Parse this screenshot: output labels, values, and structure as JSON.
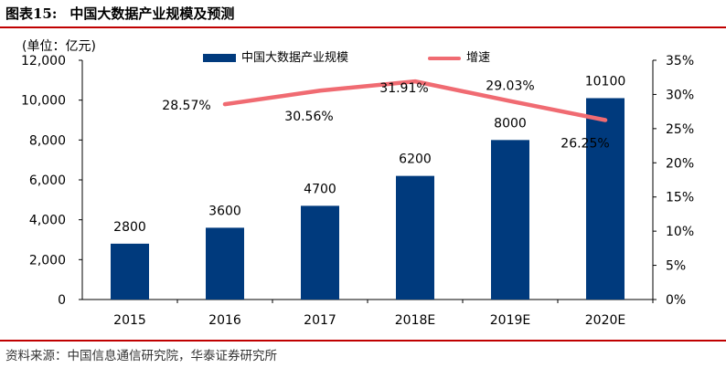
{
  "figure": {
    "title_num": "图表15:",
    "title_text": "中国大数据产业规模及预测",
    "unit_label": "(单位：亿元)",
    "source": "资料来源：中国信息通信研究院，华泰证券研究所"
  },
  "colors": {
    "bar": "#003a7d",
    "line": "#f06b72",
    "rule": "#c00000"
  },
  "chart_data": {
    "type": "bar+line",
    "categories": [
      "2015",
      "2016",
      "2017",
      "2018E",
      "2019E",
      "2020E"
    ],
    "series": [
      {
        "name": "中国大数据产业规模",
        "type": "bar",
        "axis": "left",
        "values": [
          2800,
          3600,
          4700,
          6200,
          8000,
          10100
        ],
        "labels": [
          "2800",
          "3600",
          "4700",
          "6200",
          "8000",
          "10100"
        ]
      },
      {
        "name": "增速",
        "type": "line",
        "axis": "right",
        "values": [
          null,
          28.57,
          30.56,
          31.91,
          29.03,
          26.25
        ],
        "labels": [
          "",
          "28.57%",
          "30.56%",
          "31.91%",
          "29.03%",
          "26.25%"
        ]
      }
    ],
    "y_left": {
      "min": 0,
      "max": 12000,
      "step": 2000,
      "ticks": [
        "0",
        "2,000",
        "4,000",
        "6,000",
        "8,000",
        "10,000",
        "12,000"
      ]
    },
    "y_right": {
      "min": 0,
      "max": 35,
      "step": 5,
      "ticks": [
        "0%",
        "5%",
        "10%",
        "15%",
        "20%",
        "25%",
        "30%",
        "35%"
      ]
    },
    "legend": [
      "中国大数据产业规模",
      "增速"
    ],
    "legend_position": "top"
  }
}
